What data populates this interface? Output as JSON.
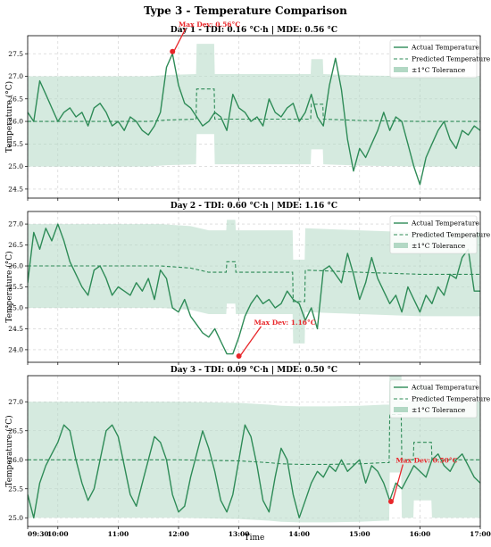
{
  "figure": {
    "title": "Type 3 - Temperature Comparison",
    "xlabel": "Time"
  },
  "colors": {
    "actual": "#2e8b57",
    "predicted": "#2e8b57",
    "tolerance": "#b2d8c4",
    "annotation": "#e8262a"
  },
  "legend": {
    "actual": "Actual Temperature",
    "predicted": "Predicted Temperature",
    "tolerance": "±1°C Tolerance",
    "placement": "upper right"
  },
  "chart_data": [
    {
      "type": "line",
      "title": "Day 1 - TDI: 0.16 °C·h | MDE: 0.56 °C",
      "ylabel": "Temperature (°C)",
      "ylim": [
        24.3,
        27.9
      ],
      "yticks": [
        "24.5",
        "25.0",
        "25.5",
        "26.0",
        "26.5",
        "27.0",
        "27.5"
      ],
      "xlim": [
        9.5,
        17.0
      ],
      "xticks": [
        "09:30",
        "10:00",
        "11:00",
        "12:00",
        "13:00",
        "14:00",
        "15:00",
        "16:00",
        "17:00"
      ],
      "grid": true,
      "series": [
        {
          "name": "Actual Temperature",
          "style": "solid",
          "x": [
            9.5,
            9.6,
            9.7,
            9.8,
            9.9,
            10.0,
            10.1,
            10.2,
            10.3,
            10.4,
            10.5,
            10.6,
            10.7,
            10.8,
            10.9,
            11.0,
            11.1,
            11.2,
            11.3,
            11.4,
            11.5,
            11.6,
            11.7,
            11.8,
            11.9,
            12.0,
            12.1,
            12.2,
            12.3,
            12.4,
            12.5,
            12.6,
            12.7,
            12.8,
            12.9,
            13.0,
            13.1,
            13.2,
            13.3,
            13.4,
            13.5,
            13.6,
            13.7,
            13.8,
            13.9,
            14.0,
            14.1,
            14.2,
            14.3,
            14.4,
            14.5,
            14.6,
            14.7,
            14.8,
            14.9,
            15.0,
            15.1,
            15.2,
            15.3,
            15.4,
            15.5,
            15.6,
            15.7,
            15.8,
            15.9,
            16.0,
            16.1,
            16.2,
            16.3,
            16.4,
            16.5,
            16.6,
            16.7,
            16.8,
            16.9,
            17.0
          ],
          "y": [
            26.2,
            26.0,
            26.9,
            26.6,
            26.3,
            26.0,
            26.2,
            26.3,
            26.1,
            26.2,
            25.9,
            26.3,
            26.4,
            26.2,
            25.9,
            26.0,
            25.8,
            26.1,
            26.0,
            25.8,
            25.7,
            25.9,
            26.2,
            27.2,
            27.5,
            26.8,
            26.4,
            26.3,
            26.1,
            25.9,
            26.0,
            26.2,
            26.1,
            25.8,
            26.6,
            26.3,
            26.2,
            26.0,
            26.1,
            25.9,
            26.5,
            26.2,
            26.1,
            26.3,
            26.4,
            26.0,
            26.2,
            26.6,
            26.1,
            25.9,
            26.8,
            27.4,
            26.7,
            25.6,
            24.9,
            25.4,
            25.2,
            25.5,
            25.8,
            26.2,
            25.8,
            26.1,
            26.0,
            25.5,
            25.0,
            24.6,
            25.2,
            25.5,
            25.8,
            26.0,
            25.6,
            25.4,
            25.8,
            25.7,
            25.9,
            25.8
          ]
        },
        {
          "name": "Predicted Temperature",
          "style": "dashed",
          "x": [
            9.5,
            11.5,
            11.8,
            12.29,
            12.3,
            12.59,
            12.6,
            13.0,
            14.19,
            14.2,
            14.39,
            14.4,
            15.0,
            16.0,
            17.0
          ],
          "y": [
            26.0,
            26.0,
            26.03,
            26.05,
            26.72,
            26.72,
            26.05,
            26.05,
            26.05,
            26.38,
            26.38,
            26.05,
            26.02,
            26.0,
            26.0
          ]
        },
        {
          "name": "±1°C Tolerance",
          "style": "band",
          "x": [
            9.5,
            11.5,
            11.8,
            12.29,
            12.3,
            12.59,
            12.6,
            13.0,
            14.19,
            14.2,
            14.39,
            14.4,
            15.0,
            16.0,
            17.0
          ],
          "y": [
            26.0,
            26.0,
            26.03,
            26.05,
            26.72,
            26.72,
            26.05,
            26.05,
            26.05,
            26.38,
            26.38,
            26.05,
            26.02,
            26.0,
            26.0
          ]
        }
      ],
      "annotation": {
        "text": "Max Dev: 0.56°C",
        "x": 11.9,
        "y": 27.55,
        "text_x": 12.0,
        "text_y": 28.1
      }
    },
    {
      "type": "line",
      "title": "Day 2 - TDI: 0.60 °C·h | MDE: 1.16 °C",
      "ylabel": "Temperature (°C)",
      "ylim": [
        23.7,
        27.3
      ],
      "yticks": [
        "24.0",
        "24.5",
        "25.0",
        "25.5",
        "26.0",
        "26.5",
        "27.0"
      ],
      "xlim": [
        9.5,
        17.0
      ],
      "xticks": [
        "09:30",
        "10:00",
        "11:00",
        "12:00",
        "13:00",
        "14:00",
        "15:00",
        "16:00",
        "17:00"
      ],
      "grid": true,
      "series": [
        {
          "name": "Actual Temperature",
          "style": "solid",
          "x": [
            9.5,
            9.6,
            9.7,
            9.8,
            9.9,
            10.0,
            10.1,
            10.2,
            10.3,
            10.4,
            10.5,
            10.6,
            10.7,
            10.8,
            10.9,
            11.0,
            11.1,
            11.2,
            11.3,
            11.4,
            11.5,
            11.6,
            11.7,
            11.8,
            11.9,
            12.0,
            12.1,
            12.2,
            12.3,
            12.4,
            12.5,
            12.6,
            12.7,
            12.8,
            12.9,
            13.0,
            13.1,
            13.2,
            13.3,
            13.4,
            13.5,
            13.6,
            13.7,
            13.8,
            13.9,
            14.0,
            14.1,
            14.2,
            14.3,
            14.4,
            14.5,
            14.6,
            14.7,
            14.8,
            14.9,
            15.0,
            15.1,
            15.2,
            15.3,
            15.4,
            15.5,
            15.6,
            15.7,
            15.8,
            15.9,
            16.0,
            16.1,
            16.2,
            16.3,
            16.4,
            16.5,
            16.6,
            16.7,
            16.8,
            16.9,
            17.0
          ],
          "y": [
            25.6,
            26.8,
            26.4,
            26.9,
            26.6,
            27.0,
            26.6,
            26.1,
            25.8,
            25.5,
            25.3,
            25.9,
            26.0,
            25.7,
            25.3,
            25.5,
            25.4,
            25.3,
            25.6,
            25.4,
            25.7,
            25.2,
            25.9,
            25.7,
            25.0,
            24.9,
            25.2,
            24.8,
            24.6,
            24.4,
            24.3,
            24.5,
            24.2,
            23.9,
            23.9,
            24.3,
            24.8,
            25.1,
            25.3,
            25.1,
            25.2,
            25.0,
            25.1,
            25.4,
            25.2,
            25.1,
            24.7,
            25.0,
            24.5,
            25.9,
            26.0,
            25.8,
            25.6,
            26.3,
            25.8,
            25.2,
            25.6,
            26.2,
            25.7,
            25.4,
            25.1,
            25.3,
            24.9,
            25.5,
            25.2,
            24.9,
            25.3,
            25.1,
            25.5,
            25.3,
            25.8,
            25.7,
            26.2,
            26.4,
            25.4,
            25.4
          ]
        },
        {
          "name": "Predicted Temperature",
          "style": "dashed",
          "x": [
            9.5,
            11.7,
            12.2,
            12.5,
            12.79,
            12.8,
            12.94,
            12.95,
            13.5,
            13.89,
            13.9,
            14.09,
            14.1,
            15.0,
            16.0,
            17.0
          ],
          "y": [
            26.0,
            26.0,
            25.95,
            25.85,
            25.85,
            26.1,
            26.1,
            25.85,
            25.85,
            25.85,
            25.15,
            25.15,
            25.9,
            25.85,
            25.8,
            25.8
          ]
        },
        {
          "name": "±1°C Tolerance",
          "style": "band",
          "x": [
            9.5,
            11.7,
            12.2,
            12.5,
            12.79,
            12.8,
            12.94,
            12.95,
            13.5,
            13.89,
            13.9,
            14.09,
            14.1,
            15.0,
            16.0,
            17.0
          ],
          "y": [
            26.0,
            26.0,
            25.95,
            25.85,
            25.85,
            26.1,
            26.1,
            25.85,
            25.85,
            25.85,
            25.15,
            25.15,
            25.9,
            25.85,
            25.8,
            25.8
          ]
        }
      ],
      "annotation": {
        "text": "Max Dev: 1.16°C",
        "x": 13.0,
        "y": 23.85,
        "text_x": 13.25,
        "text_y": 24.6
      }
    },
    {
      "type": "line",
      "title": "Day 3 - TDI: 0.09 °C·h | MDE: 0.50 °C",
      "ylabel": "Temperature (°C)",
      "ylim": [
        24.85,
        27.45
      ],
      "yticks": [
        "25.0",
        "25.5",
        "26.0",
        "26.5",
        "27.0"
      ],
      "xlim": [
        9.5,
        17.0
      ],
      "xticks": [
        "09:30",
        "10:00",
        "11:00",
        "12:00",
        "13:00",
        "14:00",
        "15:00",
        "16:00",
        "17:00"
      ],
      "grid": true,
      "series": [
        {
          "name": "Actual Temperature",
          "style": "solid",
          "x": [
            9.5,
            9.6,
            9.7,
            9.8,
            9.9,
            10.0,
            10.1,
            10.2,
            10.3,
            10.4,
            10.5,
            10.6,
            10.7,
            10.8,
            10.9,
            11.0,
            11.1,
            11.2,
            11.3,
            11.4,
            11.5,
            11.6,
            11.7,
            11.8,
            11.9,
            12.0,
            12.1,
            12.2,
            12.3,
            12.4,
            12.5,
            12.6,
            12.7,
            12.8,
            12.9,
            13.0,
            13.1,
            13.2,
            13.3,
            13.4,
            13.5,
            13.6,
            13.7,
            13.8,
            13.9,
            14.0,
            14.1,
            14.2,
            14.3,
            14.4,
            14.5,
            14.6,
            14.7,
            14.8,
            14.9,
            15.0,
            15.1,
            15.2,
            15.3,
            15.4,
            15.5,
            15.6,
            15.7,
            15.8,
            15.9,
            16.0,
            16.1,
            16.2,
            16.3,
            16.4,
            16.5,
            16.6,
            16.7,
            16.8,
            16.9,
            17.0
          ],
          "y": [
            25.4,
            25.0,
            25.6,
            25.9,
            26.1,
            26.3,
            26.6,
            26.5,
            26.0,
            25.6,
            25.3,
            25.5,
            26.0,
            26.5,
            26.6,
            26.4,
            25.9,
            25.4,
            25.2,
            25.6,
            26.0,
            26.4,
            26.3,
            26.0,
            25.4,
            25.1,
            25.2,
            25.7,
            26.1,
            26.5,
            26.2,
            25.8,
            25.3,
            25.1,
            25.4,
            26.0,
            26.6,
            26.4,
            25.9,
            25.3,
            25.1,
            25.7,
            26.2,
            26.0,
            25.4,
            25.0,
            25.3,
            25.6,
            25.8,
            25.7,
            25.9,
            25.8,
            26.0,
            25.8,
            25.9,
            26.0,
            25.6,
            25.9,
            25.8,
            25.6,
            25.3,
            25.6,
            25.5,
            25.7,
            25.9,
            25.8,
            25.7,
            26.0,
            26.1,
            25.9,
            25.8,
            26.0,
            26.1,
            25.9,
            25.7,
            25.6
          ]
        },
        {
          "name": "Predicted Temperature",
          "style": "dashed",
          "x": [
            9.5,
            11.0,
            12.0,
            13.0,
            13.5,
            13.7,
            14.0,
            14.5,
            15.0,
            15.4,
            15.49,
            15.5,
            15.69,
            15.7,
            15.89,
            15.9,
            16.19,
            16.2,
            17.0
          ],
          "y": [
            26.0,
            26.0,
            26.0,
            25.98,
            25.95,
            25.93,
            25.92,
            25.92,
            25.93,
            25.95,
            25.95,
            26.78,
            26.78,
            26.0,
            26.0,
            26.3,
            26.3,
            26.0,
            26.0
          ]
        },
        {
          "name": "±1°C Tolerance",
          "style": "band",
          "x": [
            9.5,
            11.0,
            12.0,
            13.0,
            13.5,
            13.7,
            14.0,
            14.5,
            15.0,
            15.4,
            15.49,
            15.5,
            15.69,
            15.7,
            15.89,
            15.9,
            16.19,
            16.2,
            17.0
          ],
          "y": [
            26.0,
            26.0,
            26.0,
            25.98,
            25.95,
            25.93,
            25.92,
            25.92,
            25.93,
            25.95,
            25.95,
            26.78,
            26.78,
            26.0,
            26.0,
            26.3,
            26.3,
            26.0,
            26.0
          ]
        }
      ],
      "annotation": {
        "text": "Max Dev: 0.50°C",
        "x": 15.52,
        "y": 25.28,
        "text_x": 15.6,
        "text_y": 25.95
      }
    }
  ]
}
